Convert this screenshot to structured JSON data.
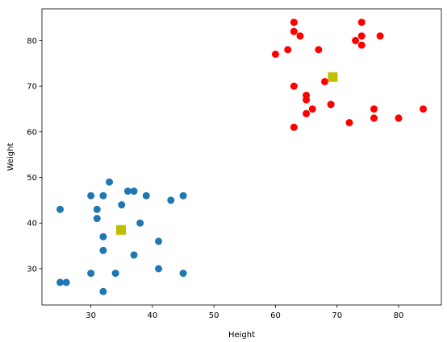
{
  "chart_data": {
    "type": "scatter",
    "title": "",
    "xlabel": "Height",
    "ylabel": "Weight",
    "xlim": [
      22.05,
      86.95
    ],
    "ylim": [
      22.05,
      86.95
    ],
    "x_ticks": [
      30,
      40,
      50,
      60,
      70,
      80
    ],
    "y_ticks": [
      30,
      40,
      50,
      60,
      70,
      80
    ],
    "grid": false,
    "series": [
      {
        "color": "#1f77b4",
        "marker": "circle",
        "points": [
          [
            25,
            43
          ],
          [
            25,
            27
          ],
          [
            26,
            27
          ],
          [
            30,
            46
          ],
          [
            30,
            29
          ],
          [
            31,
            43
          ],
          [
            31,
            41
          ],
          [
            32,
            46
          ],
          [
            32,
            37
          ],
          [
            32,
            34
          ],
          [
            32,
            25
          ],
          [
            33,
            49
          ],
          [
            34,
            29
          ],
          [
            35,
            44
          ],
          [
            36,
            47
          ],
          [
            37,
            47
          ],
          [
            37,
            33
          ],
          [
            38,
            40
          ],
          [
            39,
            46
          ],
          [
            41,
            36
          ],
          [
            41,
            30
          ],
          [
            43,
            45
          ],
          [
            45,
            46
          ],
          [
            45,
            29
          ]
        ]
      },
      {
        "color": "#ff0000",
        "marker": "circle",
        "points": [
          [
            60,
            77
          ],
          [
            62,
            78
          ],
          [
            63,
            84
          ],
          [
            63,
            82
          ],
          [
            64,
            81
          ],
          [
            63,
            70
          ],
          [
            63,
            61
          ],
          [
            65,
            68
          ],
          [
            65,
            67
          ],
          [
            65,
            64
          ],
          [
            66,
            65
          ],
          [
            67,
            78
          ],
          [
            68,
            71
          ],
          [
            69,
            66
          ],
          [
            69,
            66
          ],
          [
            72,
            62
          ],
          [
            73,
            80
          ],
          [
            74,
            84
          ],
          [
            74,
            81
          ],
          [
            74,
            79
          ],
          [
            76,
            65
          ],
          [
            76,
            63
          ],
          [
            77,
            81
          ],
          [
            80,
            63
          ],
          [
            84,
            65
          ]
        ]
      },
      {
        "color": "#bfbf00",
        "marker": "square",
        "points": [
          [
            34.9,
            38.5
          ],
          [
            69.3,
            72.0
          ]
        ]
      }
    ]
  }
}
